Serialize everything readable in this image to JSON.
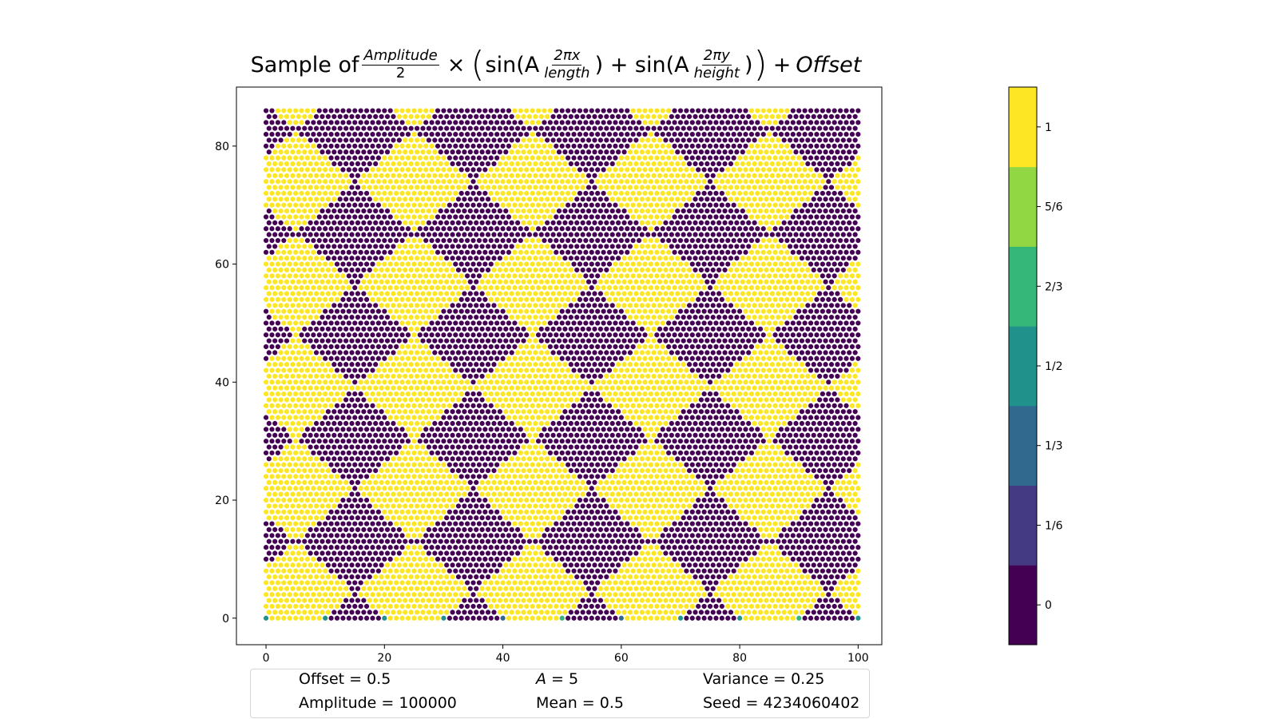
{
  "title": {
    "prefix": "Sample of",
    "frac1_num": "Amplitude",
    "frac1_den": "2",
    "times": "×",
    "lparen": "(",
    "sin1": "sin(A",
    "frac2_num": "2πx",
    "frac2_den": "length",
    "close1": ") + sin(A",
    "frac3_num": "2πy",
    "frac3_den": "height",
    "close2": ")",
    "rparen": ")",
    "plus": "+",
    "offset_word": "Offset"
  },
  "chart_data": {
    "type": "scatter",
    "title": "Sample of Amplitude/2 × (sin(A 2πx/length) + sin(A 2πy/height)) + Offset",
    "xlabel": "",
    "ylabel": "",
    "xlim": [
      -5,
      104
    ],
    "ylim": [
      -4.5,
      90
    ],
    "xticks": [
      0,
      20,
      40,
      60,
      80,
      100
    ],
    "yticks": [
      0,
      20,
      40,
      60,
      80
    ],
    "grid": false,
    "lattice": "hexagonal",
    "x_count": 101,
    "y_count": 87,
    "x_range": [
      0,
      100
    ],
    "y_range": [
      0,
      86
    ],
    "value_function": "round(clip(0.5 + 50000*(sin(5*2πx/100) + sin(5*2πy/87)), 0, 1) * 6) / 6",
    "notable_values": [
      {
        "x": 30,
        "y": 0,
        "value": 0.5
      },
      {
        "x": 40,
        "y": 0,
        "value": 0.3333
      },
      {
        "x": 50,
        "y": 0,
        "value": 0.6667
      },
      {
        "x": 60,
        "y": 0,
        "value": 0.3333
      },
      {
        "x": 90,
        "y": 0,
        "value": 0.6667
      }
    ],
    "colorbar": {
      "levels": [
        {
          "value": 0,
          "label": "0",
          "color": "#440154"
        },
        {
          "value": 0.1667,
          "label": "1/6",
          "color": "#443983"
        },
        {
          "value": 0.3333,
          "label": "1/3",
          "color": "#31688e"
        },
        {
          "value": 0.5,
          "label": "1/2",
          "color": "#21918c"
        },
        {
          "value": 0.6667,
          "label": "2/3",
          "color": "#35b779"
        },
        {
          "value": 0.8333,
          "label": "5/6",
          "color": "#90d743"
        },
        {
          "value": 1,
          "label": "1",
          "color": "#fde725"
        }
      ]
    }
  },
  "info": {
    "offset": "Offset = 0.5",
    "a_symbol": "A",
    "a_value": " = 5",
    "variance": "Variance = 0.25",
    "amplitude": "Amplitude = 100000",
    "mean": "Mean = 0.5",
    "seed": "Seed = 4234060402"
  }
}
